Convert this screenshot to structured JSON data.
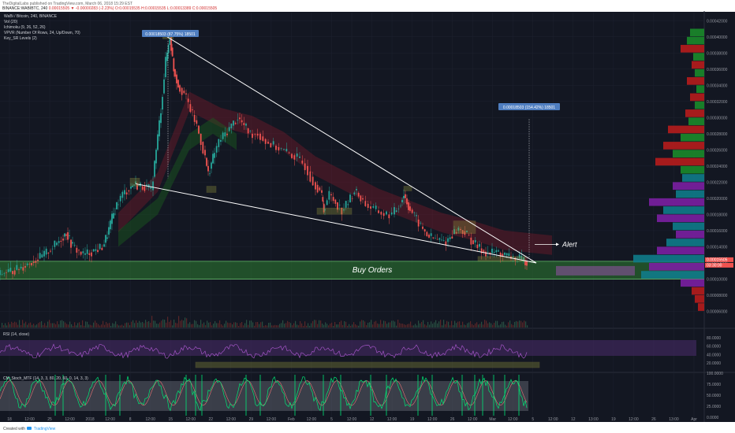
{
  "header": {
    "publisher_line": "TheDigitalLabs published on TradingView.com, March 06, 2018 15:29 EST",
    "symbol_line": "BINANCE:WABIBTC, 240",
    "ohlc_line": "0.00015505 ▼ -0.00000283 (-2.23%) O:0.00015535 H:0.00015535 L:0.00013389 C:0.00015505"
  },
  "indicators": [
    "WaBi / Bitcoin, 240, BINANCE",
    "Vol (20)",
    "Ichimoku (9, 26, 52, 26)",
    "VPVR (Number Of Rows, 24, Up/Down, 70)",
    "Key_SR Levels (2)"
  ],
  "annotations": {
    "high_label": "0.00018503 (87.75%) 18501",
    "target_label": "0.00018503 (154.42%) 18501",
    "alert": "Alert",
    "buy_orders": "Buy Orders",
    "price_tag": "0.00015505",
    "time_tag": "03:30:00"
  },
  "rsi_label": "RSI (14, close)",
  "stoch_label": "CM_Stoch_MTF (14, 3, 3, 80, 20, 60, 0, 14, 3, 3)",
  "footer_created": "Created with",
  "footer_brand": "TradingView",
  "colors": {
    "background": "#131722",
    "up": "#26a69a",
    "down": "#ef5350",
    "green_zone": "#2e7d32",
    "vpvr_green": "#1b8a2a",
    "vpvr_red": "#b71c1c",
    "vpvr_teal": "#0f7b8a",
    "vpvr_purple": "#7b1fa2",
    "rsi_band": "#4a2b6b",
    "stoch_line": "#ffeb3b",
    "stoch_signal": "#00e676",
    "axis_text": "#9598a1"
  },
  "chart_data": {
    "type": "candlestick",
    "price_axis": [
      "0.00042000",
      "0.00040000",
      "0.00038000",
      "0.00036000",
      "0.00034000",
      "0.00032000",
      "0.00030000",
      "0.00028000",
      "0.00026000",
      "0.00024000",
      "0.00022000",
      "0.00020000",
      "0.00018000",
      "0.00016000",
      "0.00014000",
      "0.00012000",
      "0.00010000",
      "0.00008000",
      "0.00006000"
    ],
    "ylim": [
      4e-05,
      0.00043
    ],
    "time_axis": [
      "18",
      "12:00",
      "25",
      "12:00",
      "2018",
      "12:00",
      "8",
      "12:00",
      "15",
      "12:00",
      "22",
      "12:00",
      "29",
      "12:00",
      "Feb",
      "12:00",
      "5",
      "12:00",
      "12",
      "12:00",
      "19",
      "12:00",
      "26",
      "12:00",
      "Mar",
      "12:00",
      "5",
      "12:00",
      "12",
      "13:00",
      "19",
      "12:00",
      "26",
      "13:00",
      "Apr"
    ],
    "rsi_axis": [
      "80.0000",
      "60.0000",
      "40.0000",
      "20.0000"
    ],
    "stoch_axis": [
      "100.0000",
      "75.0000",
      "50.0000",
      "25.0000",
      "0.0000"
    ],
    "price_path": [
      [
        0,
        0.000105
      ],
      [
        8,
        0.000108
      ],
      [
        16,
        0.00011
      ],
      [
        24,
        0.000112
      ],
      [
        32,
        0.000116
      ],
      [
        40,
        0.00012
      ],
      [
        48,
        0.000124
      ],
      [
        56,
        0.000128
      ],
      [
        64,
        0.000135
      ],
      [
        72,
        0.000142
      ],
      [
        80,
        0.00015
      ],
      [
        86,
        0.000158
      ],
      [
        92,
        0.000144
      ],
      [
        100,
        0.000136
      ],
      [
        108,
        0.00013
      ],
      [
        116,
        0.000133
      ],
      [
        124,
        0.000136
      ],
      [
        132,
        0.00014
      ],
      [
        138,
        0.000155
      ],
      [
        144,
        0.000175
      ],
      [
        150,
        0.000192
      ],
      [
        158,
        0.000205
      ],
      [
        166,
        0.000212
      ],
      [
        172,
        0.000218
      ],
      [
        178,
        0.000215
      ],
      [
        186,
        0.000215
      ],
      [
        194,
        0.00021
      ],
      [
        200,
        0.00026
      ],
      [
        206,
        0.00031
      ],
      [
        212,
        0.00037
      ],
      [
        217,
        0.0004
      ],
      [
        222,
        0.00036
      ],
      [
        228,
        0.00034
      ],
      [
        236,
        0.00033
      ],
      [
        244,
        0.00031
      ],
      [
        252,
        0.00029
      ],
      [
        260,
        0.00026
      ],
      [
        266,
        0.00023
      ],
      [
        272,
        0.00025
      ],
      [
        280,
        0.00027
      ],
      [
        288,
        0.00028
      ],
      [
        296,
        0.00029
      ],
      [
        304,
        0.0003
      ],
      [
        312,
        0.00029
      ],
      [
        320,
        0.00028
      ],
      [
        330,
        0.00028
      ],
      [
        340,
        0.00027
      ],
      [
        350,
        0.000265
      ],
      [
        360,
        0.00026
      ],
      [
        370,
        0.000255
      ],
      [
        380,
        0.00025
      ],
      [
        390,
        0.00024
      ],
      [
        400,
        0.00022
      ],
      [
        408,
        0.00021
      ],
      [
        412,
        0.000185
      ],
      [
        420,
        0.000205
      ],
      [
        428,
        0.000195
      ],
      [
        436,
        0.000185
      ],
      [
        444,
        0.000195
      ],
      [
        452,
        0.00021
      ],
      [
        460,
        0.0002
      ],
      [
        470,
        0.00019
      ],
      [
        480,
        0.000185
      ],
      [
        490,
        0.00018
      ],
      [
        500,
        0.00018
      ],
      [
        508,
        0.00019
      ],
      [
        514,
        0.000205
      ],
      [
        520,
        0.00019
      ],
      [
        528,
        0.000178
      ],
      [
        536,
        0.000165
      ],
      [
        544,
        0.000155
      ],
      [
        552,
        0.00015
      ],
      [
        560,
        0.000148
      ],
      [
        568,
        0.000146
      ],
      [
        576,
        0.000156
      ],
      [
        584,
        0.000162
      ],
      [
        592,
        0.000158
      ],
      [
        600,
        0.000148
      ],
      [
        608,
        0.00014
      ],
      [
        616,
        0.000134
      ],
      [
        624,
        0.000132
      ],
      [
        632,
        0.000134
      ],
      [
        640,
        0.00013
      ],
      [
        648,
        0.000128
      ],
      [
        656,
        0.000126
      ],
      [
        664,
        0.000124
      ],
      [
        670,
        0.000122
      ]
    ],
    "wedge_upper": [
      [
        212,
        0.0004
      ],
      [
        680,
        0.00012
      ]
    ],
    "wedge_lower": [
      [
        172,
        0.000218
      ],
      [
        680,
        0.00012
      ]
    ],
    "buy_zone": [
      0.0001,
      0.000122
    ],
    "alert_level": 0.000143
  }
}
